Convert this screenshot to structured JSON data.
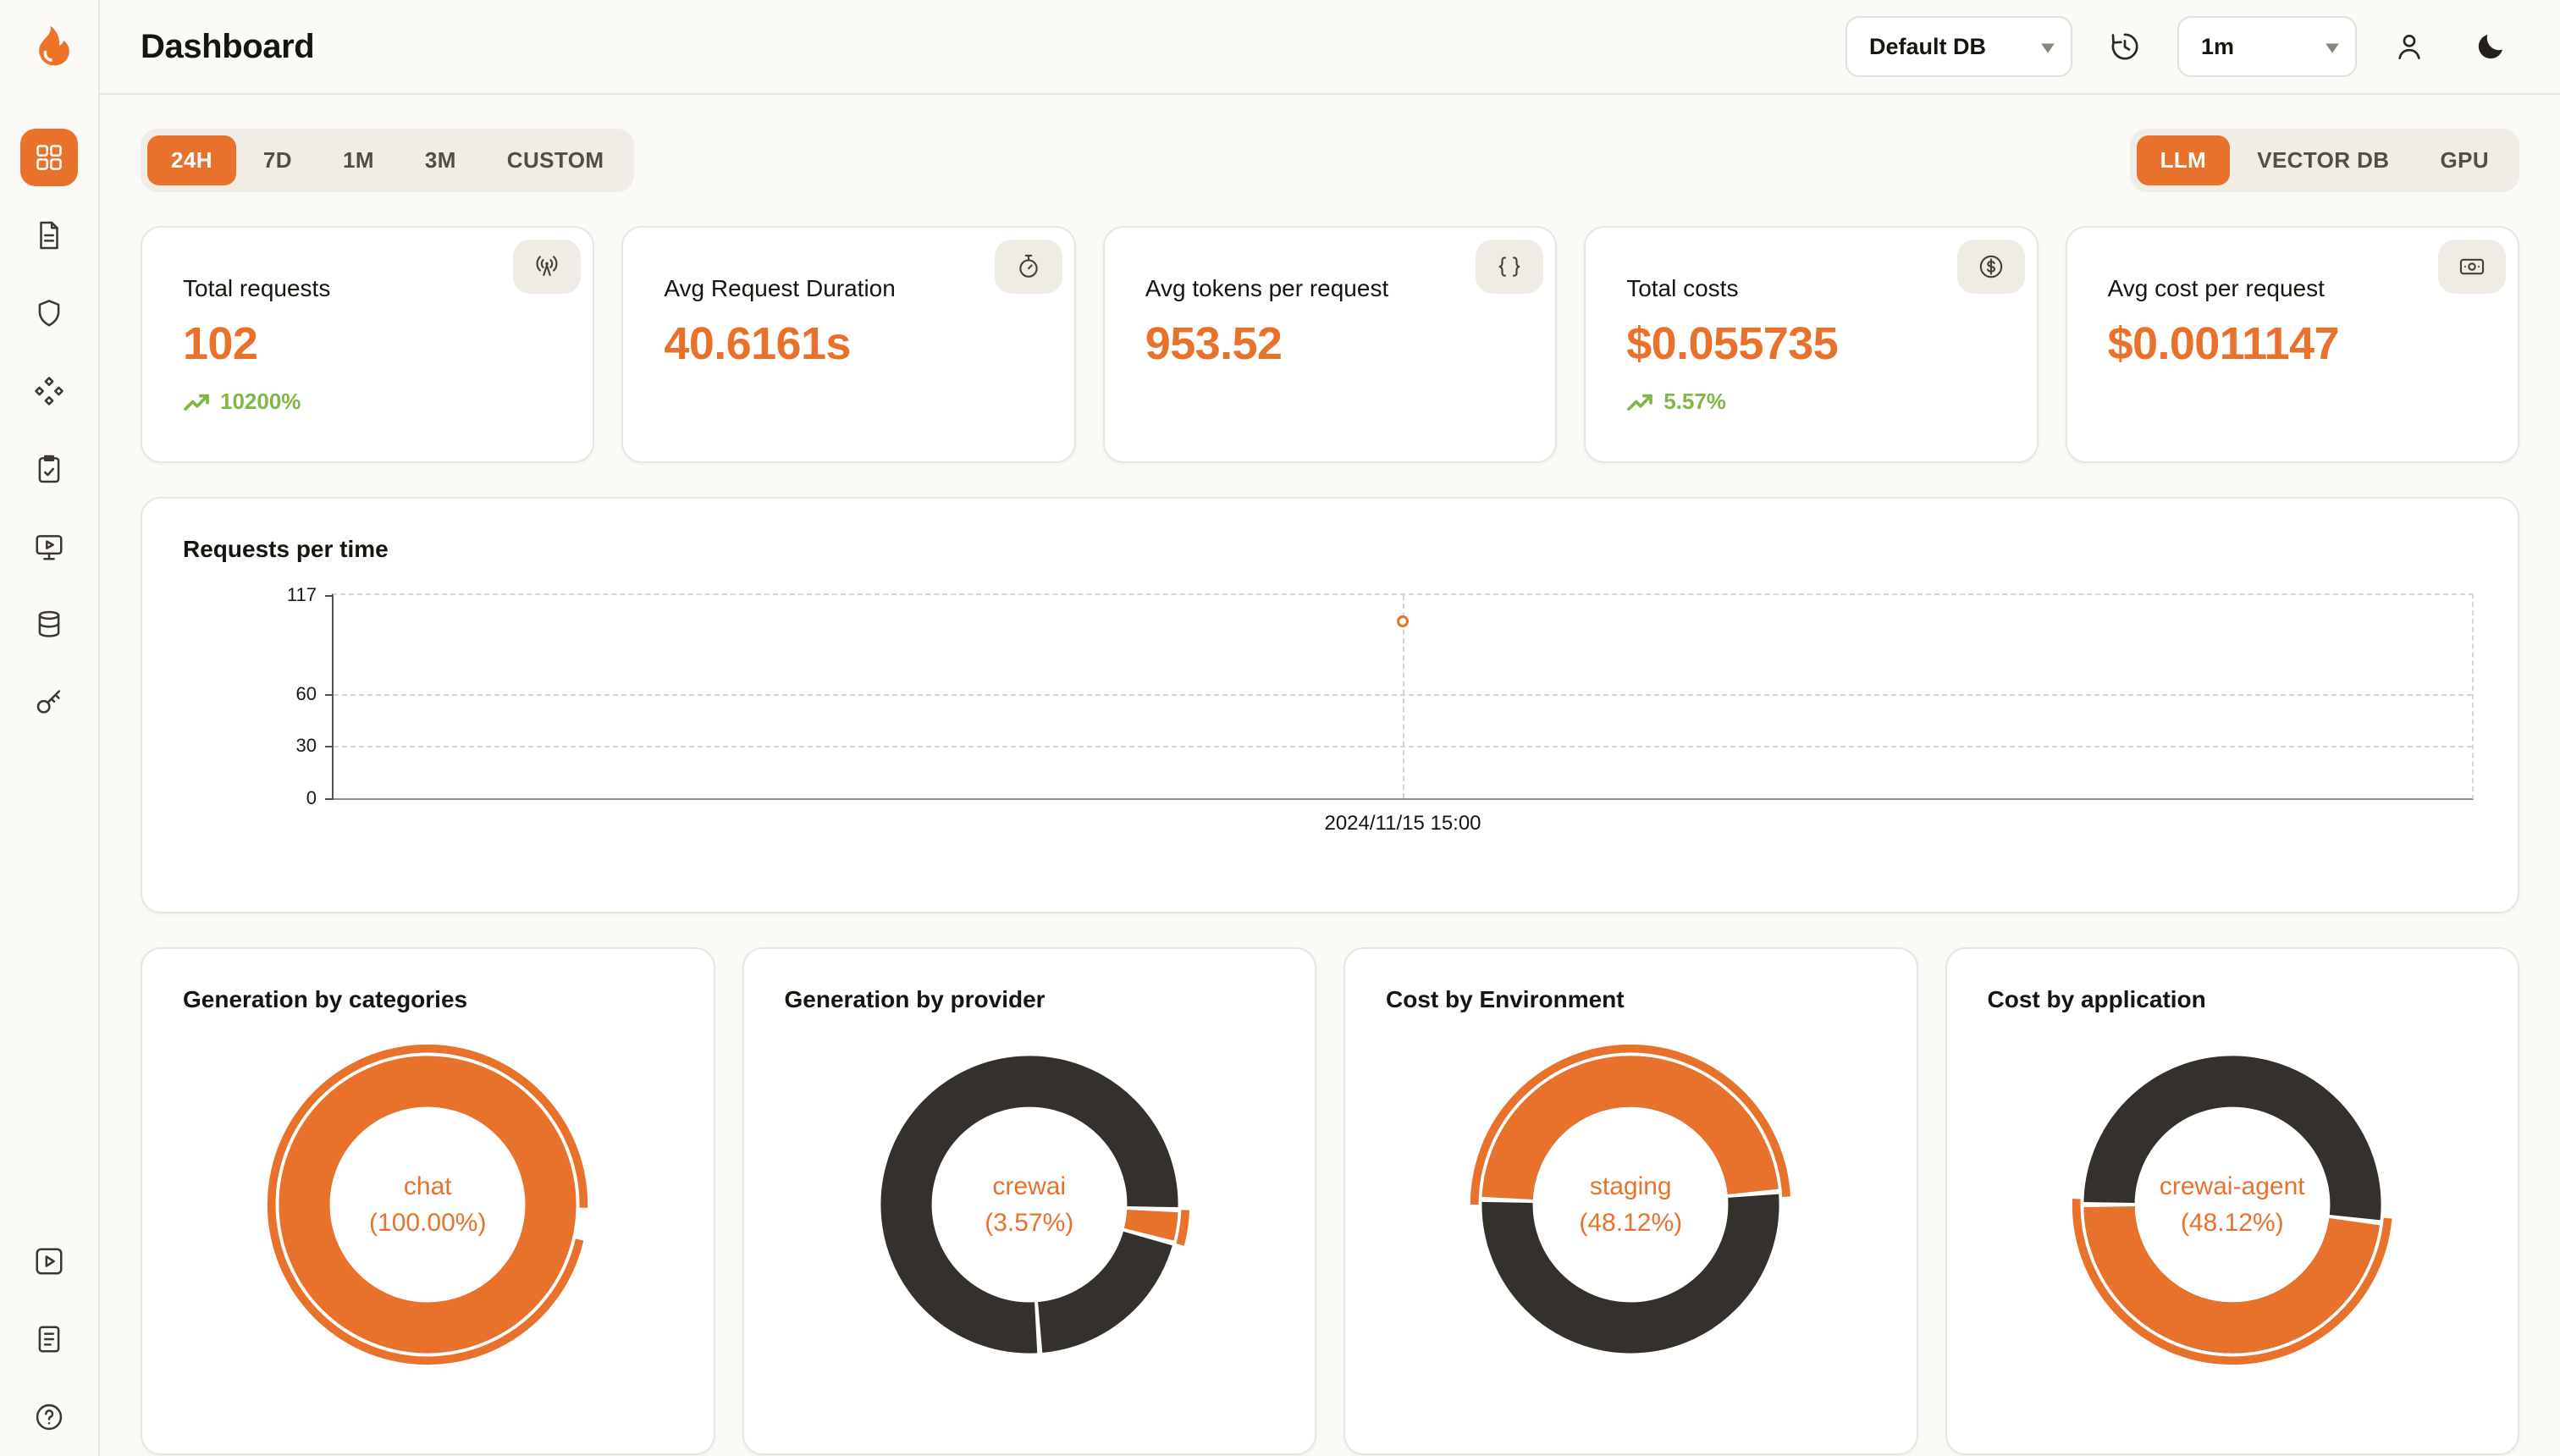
{
  "app": {
    "accent": "#E8722C",
    "dark": "#34302B",
    "green": "#7FB845"
  },
  "header": {
    "title": "Dashboard",
    "database_select": "Default DB",
    "interval_select": "1m",
    "icons": [
      "history-icon",
      "user-icon",
      "dark-mode-icon"
    ]
  },
  "sidebar": {
    "logo": "flame-logo",
    "items": [
      {
        "id": "dashboard",
        "icon": "dashboard-grid-icon",
        "active": true
      },
      {
        "id": "requests",
        "icon": "document-icon",
        "active": false
      },
      {
        "id": "exceptions",
        "icon": "shield-icon",
        "active": false
      },
      {
        "id": "prompts",
        "icon": "diamonds-icon",
        "active": false
      },
      {
        "id": "evaluations",
        "icon": "clipboard-edit-icon",
        "active": false
      },
      {
        "id": "playground",
        "icon": "monitor-play-icon",
        "active": false
      },
      {
        "id": "databases",
        "icon": "database-icon",
        "active": false
      },
      {
        "id": "api-keys",
        "icon": "key-icon",
        "active": false
      }
    ],
    "bottom_items": [
      {
        "id": "getting-started",
        "icon": "play-square-icon"
      },
      {
        "id": "docs",
        "icon": "document-lines-icon"
      },
      {
        "id": "support",
        "icon": "help-icon"
      }
    ]
  },
  "filters": {
    "time_ranges": [
      "24H",
      "7D",
      "1M",
      "3M",
      "CUSTOM"
    ],
    "active_time_range": "24H",
    "sources": [
      "LLM",
      "VECTOR DB",
      "GPU"
    ],
    "active_source": "LLM"
  },
  "stats": [
    {
      "title": "Total requests",
      "value": "102",
      "delta": "10200%",
      "icon": "antenna-icon"
    },
    {
      "title": "Avg Request Duration",
      "value": "40.6161s",
      "icon": "timer-icon"
    },
    {
      "title": "Avg tokens per request",
      "value": "953.52",
      "icon": "braces-icon"
    },
    {
      "title": "Total costs",
      "value": "$0.055735",
      "delta": "5.57%",
      "icon": "dollar-circle-icon"
    },
    {
      "title": "Avg cost per request",
      "value": "$0.0011147",
      "icon": "cash-icon"
    }
  ],
  "chart_data": [
    {
      "type": "scatter",
      "title": "Requests per time",
      "x": [
        "2024/11/15 15:00"
      ],
      "x_frac": [
        0.5
      ],
      "values": [
        102
      ],
      "ylim": [
        0,
        117
      ],
      "yticks": [
        0,
        30,
        60,
        117
      ],
      "grid": "dashed",
      "point_color": "#E8722C"
    },
    {
      "type": "pie",
      "title": "Generation by categories",
      "center_line1": "chat",
      "center_line2": "(100.00%)",
      "slices": [
        {
          "name": "chat",
          "pct": 100,
          "color": "#E8722C"
        }
      ],
      "base_color": "#E8722C",
      "outer_arc": {
        "start_deg": 103,
        "sweep_deg": 348
      },
      "gaps_deg": []
    },
    {
      "type": "pie",
      "title": "Generation by provider",
      "center_line1": "crewai",
      "center_line2": "(3.57%)",
      "slices": [
        {
          "name": "crewai",
          "pct": 3.57,
          "color": "#E8722C"
        },
        {
          "name": "others",
          "pct": 96.43,
          "color": "#34302B"
        }
      ],
      "base_color": "#34302B",
      "arc": {
        "color": "#E8722C",
        "start_deg": 92,
        "sweep_deg": 12.9
      },
      "outer_arc": {
        "start_deg": 92,
        "sweep_deg": 12.9
      },
      "gaps_deg": [
        92,
        105,
        176
      ]
    },
    {
      "type": "pie",
      "title": "Cost by Environment",
      "center_line1": "staging",
      "center_line2": "(48.12%)",
      "slices": [
        {
          "name": "staging",
          "pct": 48.12,
          "color": "#E8722C"
        },
        {
          "name": "others",
          "pct": 51.88,
          "color": "#34302B"
        }
      ],
      "base_color": "#34302B",
      "arc": {
        "color": "#E8722C",
        "start_deg": 272,
        "sweep_deg": 173.2
      },
      "outer_arc": {
        "start_deg": 270,
        "sweep_deg": 177
      },
      "gaps_deg": [
        272,
        85
      ]
    },
    {
      "type": "pie",
      "title": "Cost by application",
      "center_line1": "crewai-agent",
      "center_line2": "(48.12%)",
      "slices": [
        {
          "name": "crewai-agent",
          "pct": 48.12,
          "color": "#E8722C"
        },
        {
          "name": "others",
          "pct": 51.88,
          "color": "#34302B"
        }
      ],
      "base_color": "#34302B",
      "arc": {
        "color": "#E8722C",
        "start_deg": 97,
        "sweep_deg": 173.2
      },
      "outer_arc": {
        "start_deg": 95,
        "sweep_deg": 177
      },
      "gaps_deg": [
        97,
        270
      ]
    }
  ]
}
